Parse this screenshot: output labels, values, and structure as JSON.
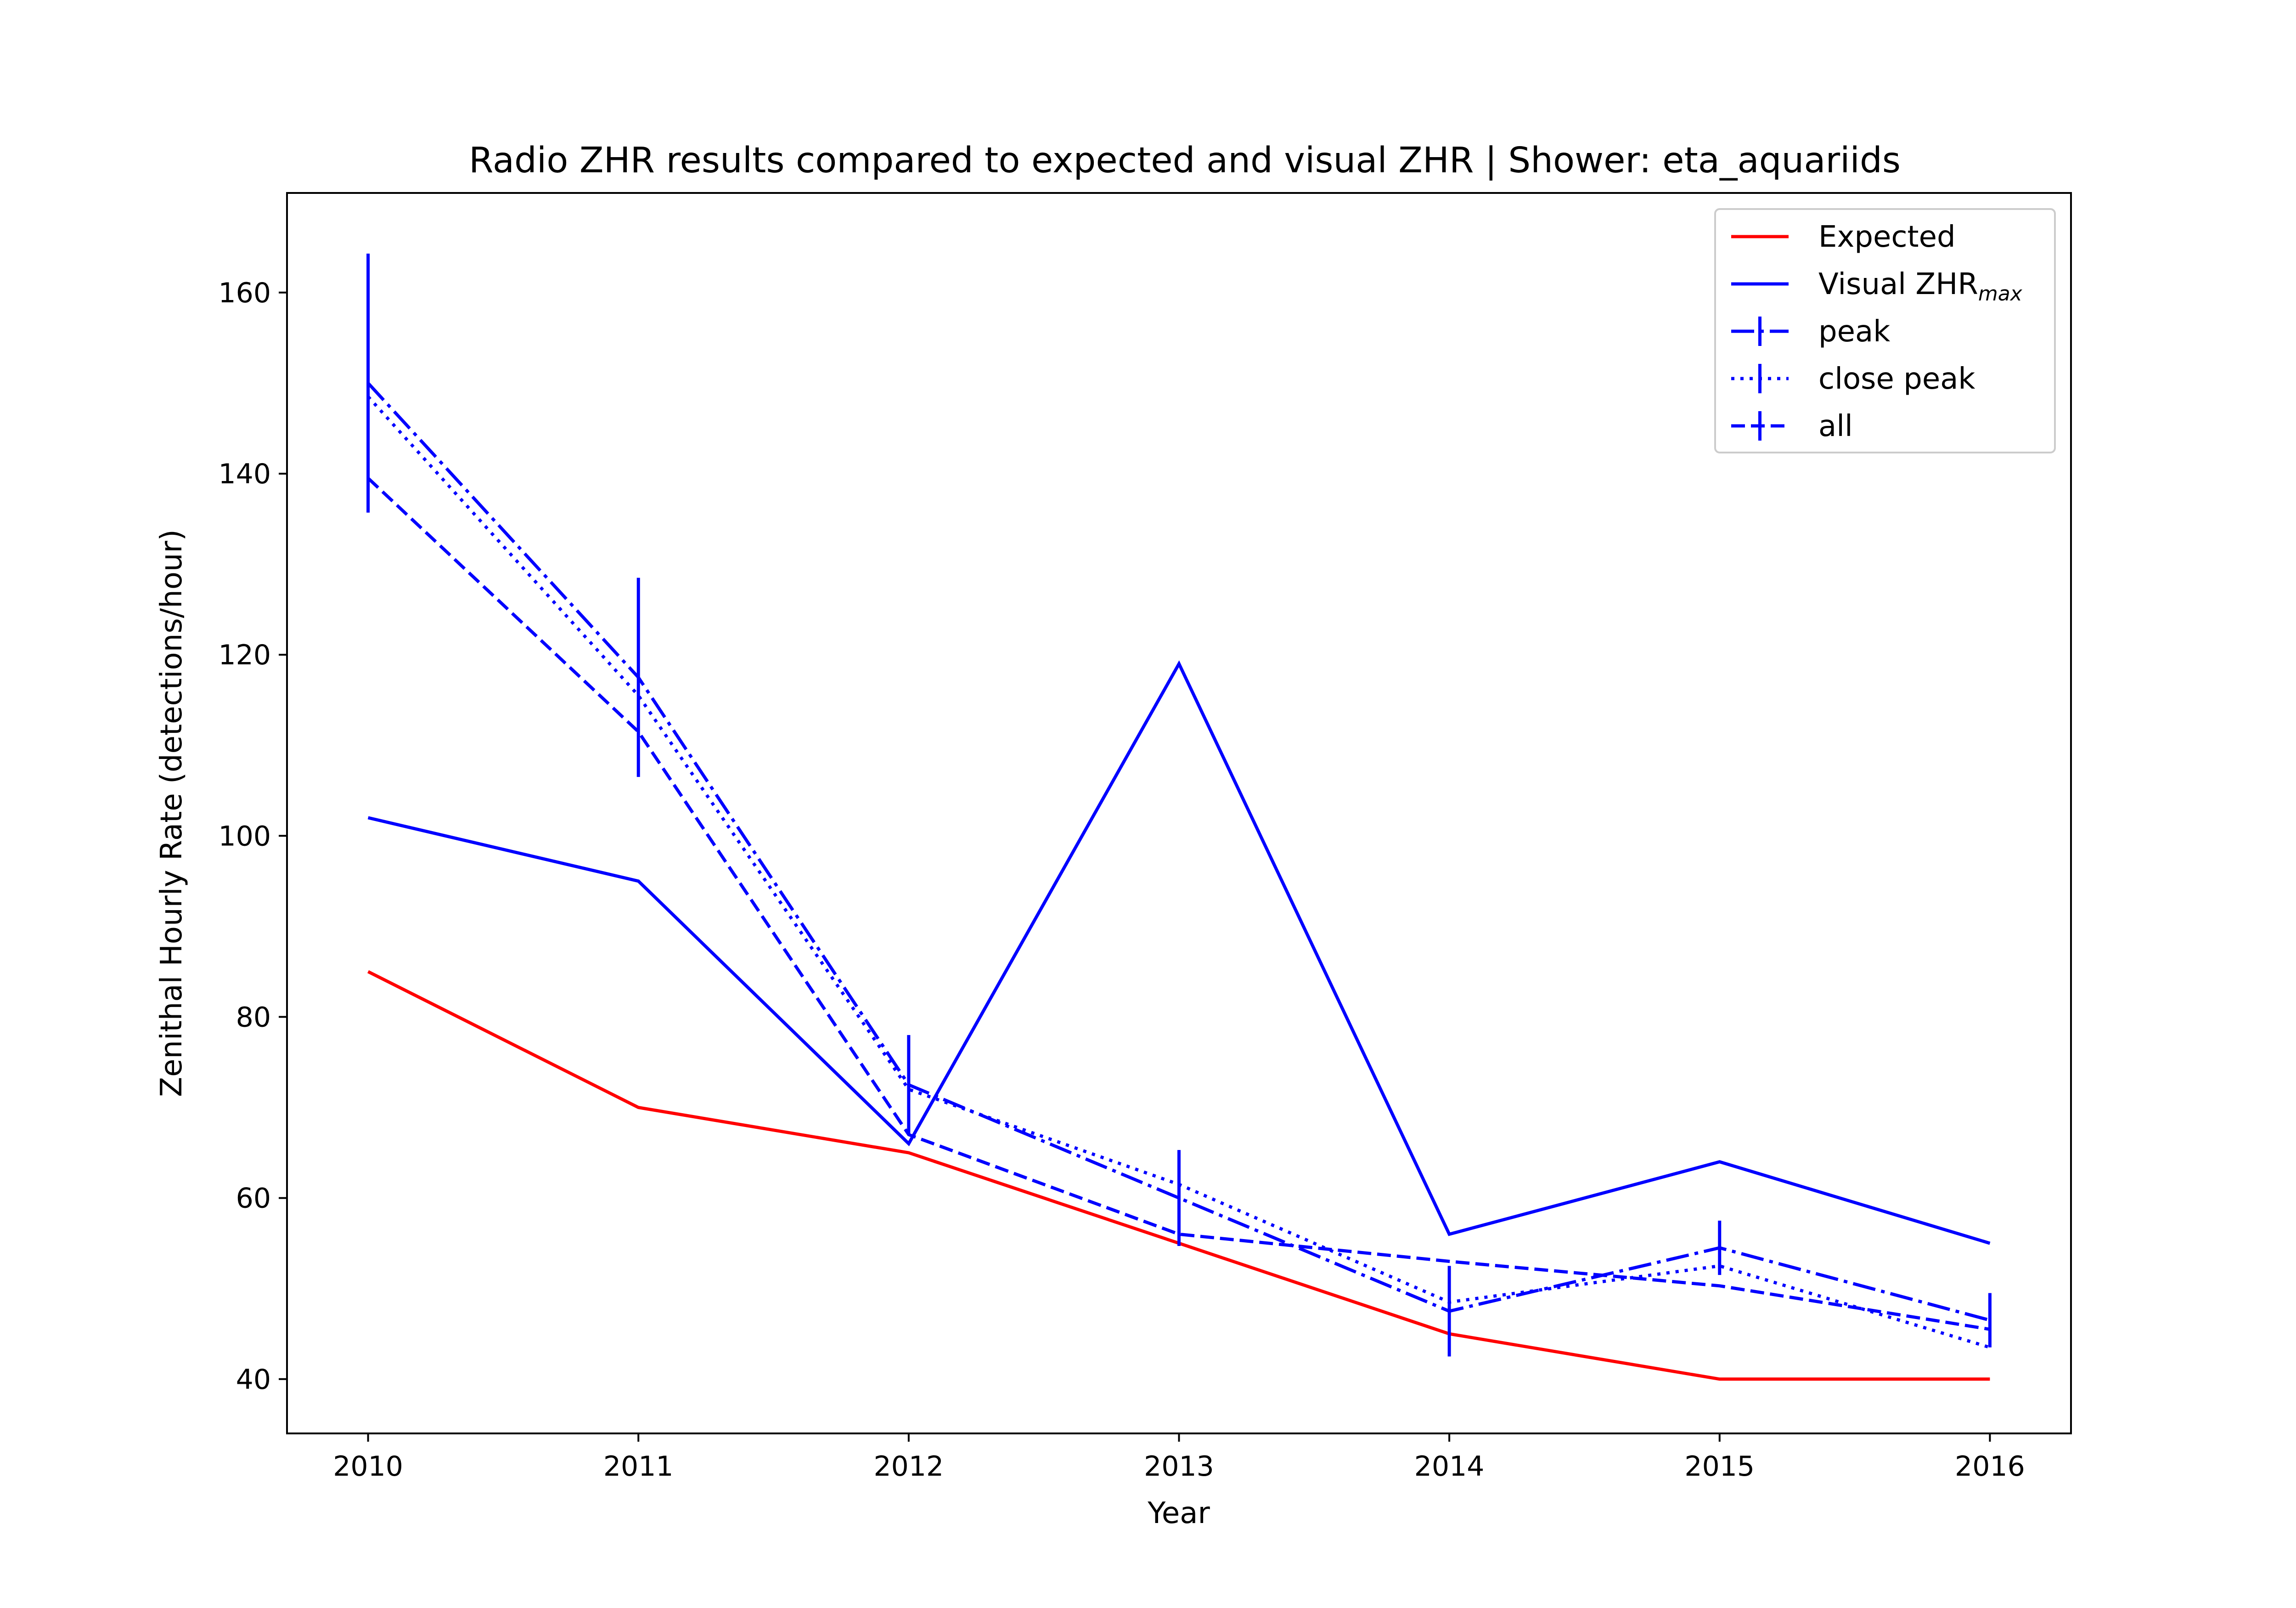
{
  "chart_data": {
    "type": "line",
    "title": "Radio ZHR results compared to expected and visual ZHR | Shower: eta_aquariids",
    "xlabel": "Year",
    "ylabel": "Zenithal Hourly Rate (detections/hour)",
    "x": [
      2010,
      2011,
      2012,
      2013,
      2014,
      2015,
      2016
    ],
    "x_tick_labels": [
      "2010",
      "2011",
      "2012",
      "2013",
      "2014",
      "2015",
      "2016"
    ],
    "y_ticks": [
      40,
      60,
      80,
      100,
      120,
      140,
      160
    ],
    "y_tick_labels": [
      "40",
      "60",
      "80",
      "100",
      "120",
      "140",
      "160"
    ],
    "xlim": [
      2009.7,
      2016.3
    ],
    "ylim": [
      34,
      171
    ],
    "grid": false,
    "legend_position": "top-right",
    "series": [
      {
        "name": "Expected",
        "color": "#ff0000",
        "style": "solid",
        "values": [
          85,
          70,
          65,
          55,
          45,
          40,
          40
        ]
      },
      {
        "name": "Visual ZHR",
        "name_subscript": "max",
        "color": "#0000ff",
        "style": "solid",
        "values": [
          102,
          95,
          66,
          119,
          56,
          64,
          55
        ]
      },
      {
        "name": "peak",
        "color": "#0000ff",
        "style": "dashdot",
        "values": [
          150,
          117.5,
          72.5,
          60,
          47.5,
          54.5,
          46.5
        ],
        "errors": [
          14.3,
          11,
          5.5,
          5.3,
          5,
          3,
          3
        ]
      },
      {
        "name": "close peak",
        "color": "#0000ff",
        "style": "dotted",
        "values": [
          148.5,
          115.5,
          72,
          61.5,
          48.5,
          52.5,
          43.5
        ],
        "errors": [
          0,
          0,
          0,
          0,
          0,
          0,
          0
        ]
      },
      {
        "name": "all",
        "color": "#0000ff",
        "style": "dashed",
        "values": [
          139.5,
          111.5,
          67,
          56,
          53,
          50.3,
          45.5
        ],
        "errors": [
          0,
          0,
          0,
          0,
          0,
          0,
          0
        ]
      }
    ]
  }
}
